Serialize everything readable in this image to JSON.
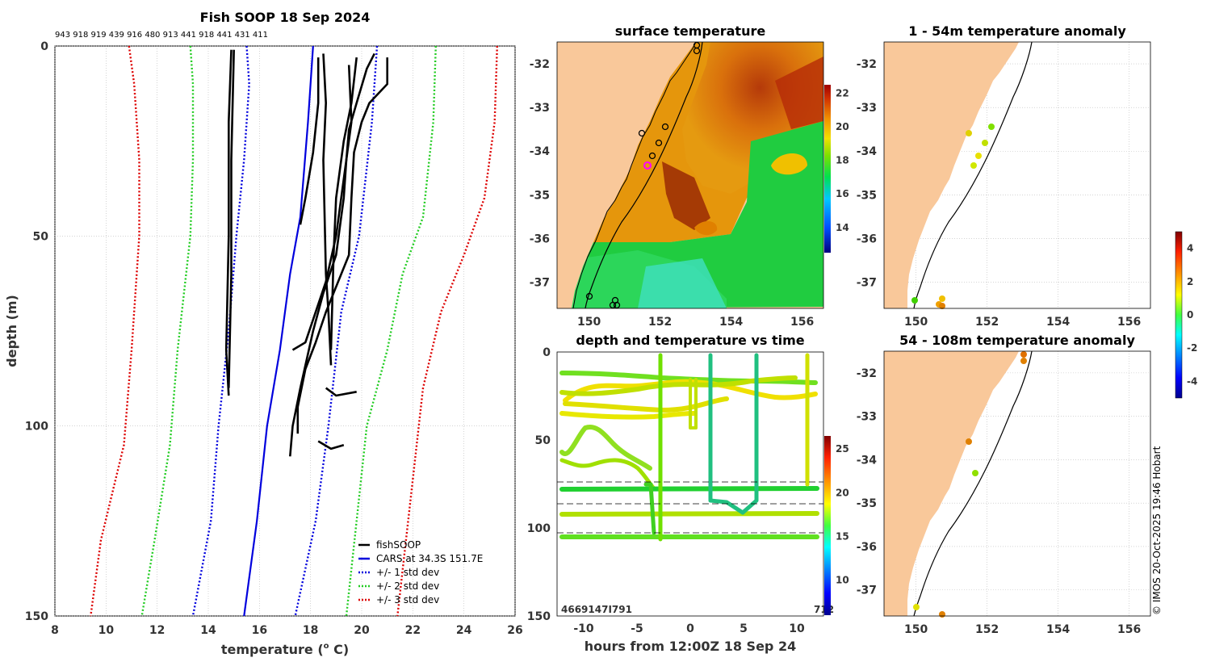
{
  "chart_data": [
    {
      "id": "profile",
      "type": "line",
      "title": "Fish SOOP 18 Sep 2024",
      "top_labels": "943 918 919 439 916 480 913 441 918 441 431 411",
      "xlabel": "temperature (°C)",
      "xlabel_main": "temperature (",
      "xlabel_sup": "o",
      "xlabel_end": " C)",
      "ylabel": "depth (m)",
      "xlim": [
        8,
        26
      ],
      "ylim": [
        150,
        0
      ],
      "xticks": [
        "8",
        "10",
        "12",
        "14",
        "16",
        "18",
        "20",
        "22",
        "24",
        "26"
      ],
      "yticks": [
        "0",
        "50",
        "100",
        "150"
      ],
      "legend": [
        "fishSOOP",
        "CARS at 34.3S 151.7E",
        "+/- 1 std dev",
        "+/- 2 std dev",
        "+/- 3 std dev"
      ],
      "series": [
        {
          "name": "CARS at 34.3S 151.7E",
          "color": "#0000dd",
          "style": "solid",
          "points": [
            [
              18.1,
              0
            ],
            [
              17.9,
              20
            ],
            [
              17.6,
              45
            ],
            [
              17.2,
              60
            ],
            [
              16.8,
              80
            ],
            [
              16.3,
              100
            ],
            [
              15.9,
              125
            ],
            [
              15.4,
              150
            ]
          ]
        },
        {
          "name": "+1 std dev",
          "color": "#0000dd",
          "style": "dotted",
          "points": [
            [
              20.6,
              0
            ],
            [
              20.4,
              20
            ],
            [
              19.9,
              50
            ],
            [
              19.2,
              70
            ],
            [
              18.7,
              100
            ],
            [
              18.2,
              125
            ],
            [
              17.4,
              150
            ]
          ]
        },
        {
          "name": "-1 std dev",
          "color": "#0000dd",
          "style": "dotted",
          "points": [
            [
              15.5,
              0
            ],
            [
              15.6,
              10
            ],
            [
              15.4,
              30
            ],
            [
              15.1,
              50
            ],
            [
              14.8,
              75
            ],
            [
              14.4,
              100
            ],
            [
              14.1,
              125
            ],
            [
              13.4,
              150
            ]
          ]
        },
        {
          "name": "+2 std dev",
          "color": "#22cc22",
          "style": "dotted",
          "points": [
            [
              22.9,
              0
            ],
            [
              22.8,
              20
            ],
            [
              22.4,
              45
            ],
            [
              21.6,
              60
            ],
            [
              21.0,
              80
            ],
            [
              20.2,
              100
            ],
            [
              19.8,
              125
            ],
            [
              19.4,
              150
            ]
          ]
        },
        {
          "name": "-2 std dev",
          "color": "#22cc22",
          "style": "dotted",
          "points": [
            [
              13.3,
              0
            ],
            [
              13.4,
              10
            ],
            [
              13.4,
              30
            ],
            [
              13.3,
              50
            ],
            [
              12.8,
              80
            ],
            [
              12.5,
              105
            ],
            [
              11.9,
              130
            ],
            [
              11.4,
              150
            ]
          ]
        },
        {
          "name": "+3 std dev",
          "color": "#dd0000",
          "style": "dotted",
          "points": [
            [
              25.3,
              0
            ],
            [
              25.2,
              20
            ],
            [
              24.8,
              40
            ],
            [
              24.0,
              55
            ],
            [
              23.1,
              70
            ],
            [
              22.4,
              90
            ],
            [
              21.9,
              120
            ],
            [
              21.4,
              150
            ]
          ]
        },
        {
          "name": "-3 std dev",
          "color": "#dd0000",
          "style": "dotted",
          "points": [
            [
              10.9,
              0
            ],
            [
              11.1,
              10
            ],
            [
              11.3,
              30
            ],
            [
              11.3,
              50
            ],
            [
              11.0,
              80
            ],
            [
              10.7,
              105
            ],
            [
              9.8,
              130
            ],
            [
              9.4,
              150
            ]
          ]
        }
      ],
      "fishsoop_profiles": [
        [
          [
            14.9,
            1
          ],
          [
            14.8,
            20
          ],
          [
            14.8,
            50
          ],
          [
            14.7,
            80
          ],
          [
            14.8,
            92
          ]
        ],
        [
          [
            15.0,
            1
          ],
          [
            14.9,
            30
          ],
          [
            14.9,
            60
          ],
          [
            14.8,
            90
          ]
        ],
        [
          [
            18.3,
            3
          ],
          [
            18.3,
            15
          ],
          [
            18.1,
            28
          ],
          [
            17.8,
            40
          ],
          [
            17.6,
            47
          ]
        ],
        [
          [
            18.5,
            2
          ],
          [
            18.6,
            15
          ],
          [
            18.5,
            30
          ],
          [
            18.6,
            60
          ],
          [
            18.7,
            70
          ],
          [
            18.8,
            84
          ]
        ],
        [
          [
            19.8,
            3
          ],
          [
            19.6,
            15
          ],
          [
            19.3,
            25
          ],
          [
            19.0,
            40
          ],
          [
            18.9,
            55
          ],
          [
            18.8,
            80
          ]
        ],
        [
          [
            20.5,
            2
          ],
          [
            20.2,
            6
          ],
          [
            19.8,
            15
          ],
          [
            19.5,
            22
          ],
          [
            19.4,
            30
          ],
          [
            19.3,
            40
          ],
          [
            19.0,
            55
          ],
          [
            18.5,
            65
          ],
          [
            18.1,
            75
          ],
          [
            17.6,
            90
          ],
          [
            17.3,
            100
          ],
          [
            17.2,
            108
          ]
        ],
        [
          [
            21.0,
            3
          ],
          [
            21.0,
            10
          ],
          [
            20.3,
            15
          ],
          [
            20.0,
            20
          ],
          [
            19.7,
            28
          ],
          [
            19.6,
            40
          ],
          [
            19.5,
            55
          ],
          [
            19.2,
            60
          ],
          [
            18.6,
            70
          ],
          [
            18.2,
            78
          ],
          [
            17.8,
            85
          ],
          [
            17.5,
            95
          ],
          [
            17.5,
            102
          ]
        ],
        [
          [
            19.5,
            5
          ],
          [
            19.6,
            20
          ],
          [
            19.3,
            35
          ],
          [
            19.0,
            50
          ],
          [
            18.6,
            62
          ],
          [
            18.1,
            72
          ],
          [
            17.8,
            78
          ],
          [
            17.3,
            80
          ]
        ],
        [
          [
            18.6,
            90
          ],
          [
            19.0,
            92
          ],
          [
            19.8,
            91
          ]
        ],
        [
          [
            18.3,
            104
          ],
          [
            18.8,
            106
          ],
          [
            19.3,
            105
          ]
        ]
      ]
    },
    {
      "id": "sst",
      "type": "heatmap",
      "title": "surface temperature",
      "xticks": [
        "150",
        "152",
        "154",
        "156"
      ],
      "yticks": [
        "-32",
        "-33",
        "-34",
        "-35",
        "-36",
        "-37"
      ],
      "colorbar_ticks": [
        "22",
        "20",
        "18",
        "16",
        "14"
      ],
      "colorbar_range": [
        12.5,
        22.5
      ]
    },
    {
      "id": "anom1",
      "type": "scatter",
      "title": "1 - 54m temperature anomaly",
      "xticks": [
        "150",
        "152",
        "154",
        "156"
      ],
      "yticks": [
        "-32",
        "-33",
        "-34",
        "-35",
        "-36",
        "-37"
      ]
    },
    {
      "id": "anom2",
      "type": "scatter",
      "title": "54 - 108m temperature anomaly",
      "xticks": [
        "150",
        "152",
        "154",
        "156"
      ],
      "yticks": [
        "-32",
        "-33",
        "-34",
        "-35",
        "-36",
        "-37"
      ]
    },
    {
      "id": "anom_colorbar",
      "type": "heatmap",
      "colorbar_ticks": [
        "4",
        "2",
        "0",
        "-2",
        "-4"
      ],
      "colorbar_range": [
        -5,
        5
      ]
    },
    {
      "id": "timeseries",
      "type": "scatter",
      "title": "depth and temperature vs time",
      "xlabel": "hours from 12:00Z 18 Sep 24",
      "xlim": [
        -12.5,
        12.5
      ],
      "ylim": [
        150,
        0
      ],
      "xticks": [
        "-10",
        "-5",
        "0",
        "5",
        "10"
      ],
      "yticks": [
        "0",
        "50",
        "100",
        "150"
      ],
      "bottom_left_label": "4669147I791",
      "bottom_right_label": "712",
      "colorbar_ticks": [
        "25",
        "20",
        "15",
        "10"
      ],
      "colorbar_range": [
        6,
        26.5
      ]
    }
  ],
  "credit": "© IMOS 20-Oct-2025 19:46 Hobart"
}
